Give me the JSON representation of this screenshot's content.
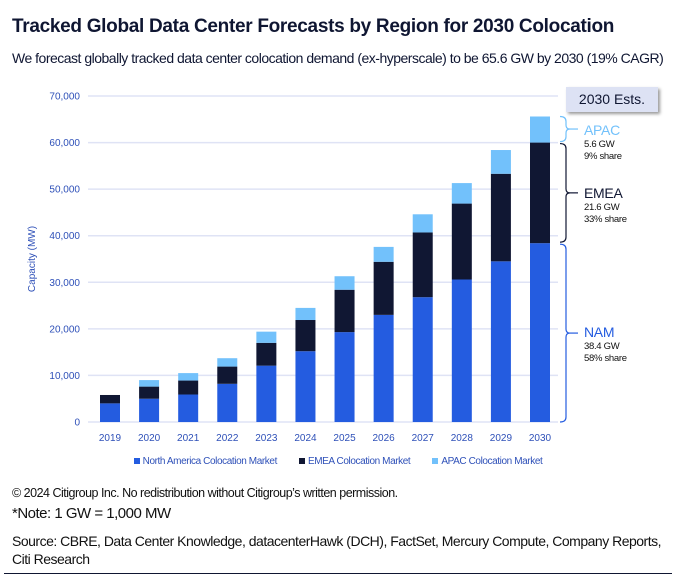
{
  "title": "Tracked Global Data Center Forecasts by Region for 2030 Colocation",
  "subtitle": "We forecast globally tracked data center colocation demand (ex-hyperscale) to be 65.6 GW by 2030 (19% CAGR)",
  "chart_data": {
    "type": "bar",
    "stacked": true,
    "title": "",
    "xlabel": "",
    "ylabel": "Capacity (MW)",
    "ylim": [
      0,
      70000
    ],
    "yticks": [
      0,
      10000,
      20000,
      30000,
      40000,
      50000,
      60000,
      70000
    ],
    "ytick_labels": [
      "0",
      "10,000",
      "20,000",
      "30,000",
      "40,000",
      "50,000",
      "60,000",
      "70,000"
    ],
    "grid": true,
    "legend_placement": "bottom",
    "categories": [
      "2019",
      "2020",
      "2021",
      "2022",
      "2023",
      "2024",
      "2025",
      "2026",
      "2027",
      "2028",
      "2029",
      "2030"
    ],
    "series": [
      {
        "name": "North America Colocation Market",
        "color": "#245ce0",
        "values": [
          4000,
          5000,
          5900,
          8200,
          12100,
          15200,
          19300,
          23000,
          26800,
          30600,
          34500,
          38400
        ]
      },
      {
        "name": "EMEA Colocation Market",
        "color": "#101733",
        "values": [
          1800,
          2600,
          3000,
          3700,
          4900,
          6700,
          9100,
          11400,
          13900,
          16300,
          18800,
          21600
        ]
      },
      {
        "name": "APAC Colocation Market",
        "color": "#72c1fb",
        "values": [
          0,
          1400,
          1600,
          1800,
          2400,
          2600,
          2900,
          3200,
          3900,
          4400,
          5100,
          5600
        ]
      }
    ],
    "annotations": {
      "box": "2030 Ests.",
      "apac": {
        "label": "APAC",
        "value": "5.6 GW",
        "share": "9% share",
        "color": "#72c1fb"
      },
      "emea": {
        "label": "EMEA",
        "value": "21.6 GW",
        "share": "33% share",
        "color": "#101733"
      },
      "nam": {
        "label": "NAM",
        "value": "38.4 GW",
        "share": "58% share",
        "color": "#245ce0"
      }
    }
  },
  "footer": {
    "copyright": "© 2024 Citigroup Inc. No redistribution without Citigroup’s written permission.",
    "note": "*Note: 1 GW = 1,000 MW",
    "source": "Source: CBRE, Data Center Knowledge, datacenterHawk (DCH), FactSet, Mercury Compute, Company Reports,",
    "source2": "Citi Research"
  }
}
